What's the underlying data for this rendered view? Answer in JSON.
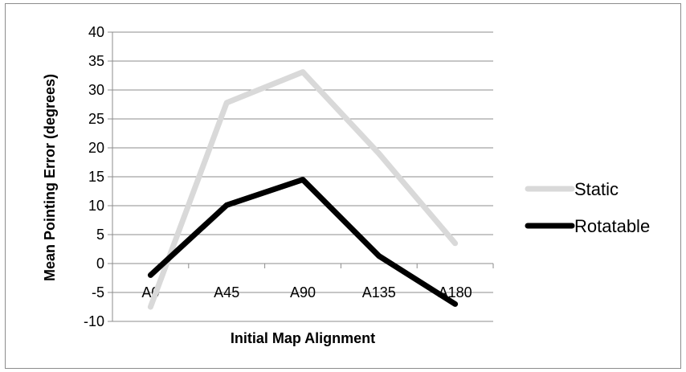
{
  "chart_data": {
    "type": "line",
    "title": "",
    "xlabel": "Initial Map Alignment",
    "ylabel": "Mean Pointing Error (degrees)",
    "categories": [
      "A0",
      "A45",
      "A90",
      "A135",
      "A180"
    ],
    "yticks": [
      "-10",
      "-5",
      "0",
      "5",
      "10",
      "15",
      "20",
      "25",
      "30",
      "35",
      "40"
    ],
    "ylim": [
      -10,
      40
    ],
    "grid": true,
    "legend_position": "right",
    "series": [
      {
        "name": "Static",
        "color": "#d9d9d9",
        "values": [
          -7.5,
          27.8,
          33.1,
          19.0,
          3.5
        ]
      },
      {
        "name": "Rotatable",
        "color": "#000000",
        "values": [
          -2.0,
          10.1,
          14.5,
          1.3,
          -7.0
        ]
      }
    ]
  }
}
